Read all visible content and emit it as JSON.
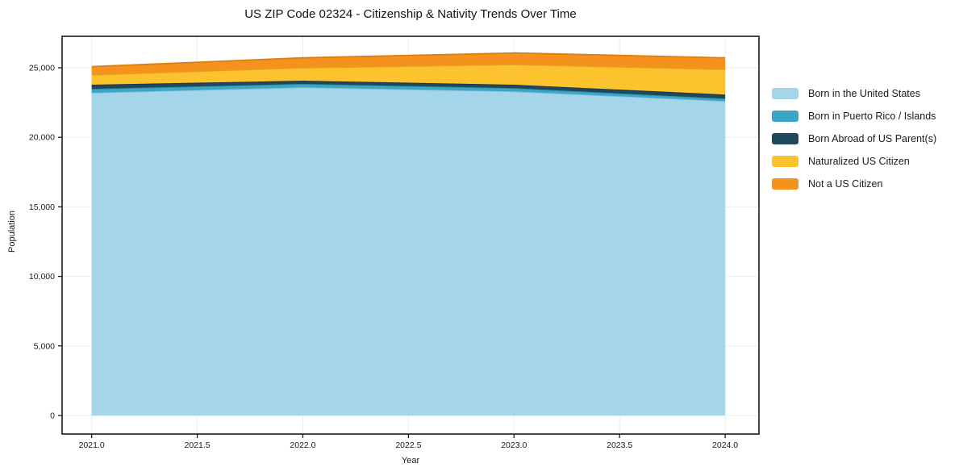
{
  "chart_data": {
    "type": "area",
    "stacked": true,
    "title": "US ZIP Code 02324 - Citizenship & Nativity Trends Over Time",
    "xlabel": "Year",
    "ylabel": "Population",
    "x": [
      2021,
      2022,
      2023,
      2024
    ],
    "series": [
      {
        "name": "Born in the United States",
        "fill": "#A5D5E9",
        "line": "#7FBEDC",
        "values": [
          23200,
          23590,
          23300,
          22600
        ]
      },
      {
        "name": "Born in Puerto Rico / Islands",
        "fill": "#3AA7C6",
        "line": "#2F8FAB",
        "values": [
          280,
          250,
          230,
          180
        ]
      },
      {
        "name": "Born Abroad of US Parent(s)",
        "fill": "#1F485C",
        "line": "#16364A",
        "values": [
          300,
          230,
          250,
          290
        ]
      },
      {
        "name": "Naturalized US Citizen",
        "fill": "#FCC32F",
        "line": "#E2A71E",
        "values": [
          710,
          930,
          1450,
          1810
        ]
      },
      {
        "name": "Not a US Citizen",
        "fill": "#F5921E",
        "line": "#DD7E12",
        "values": [
          590,
          710,
          830,
          830
        ]
      }
    ],
    "xlim": [
      2020.86,
      2024.16
    ],
    "ylim": [
      -1335,
      27260
    ],
    "xticks": {
      "values": [
        2021,
        2021.5,
        2022,
        2022.5,
        2023,
        2023.5,
        2024
      ],
      "labels": [
        "2021.0",
        "2021.5",
        "2022.0",
        "2022.5",
        "2023.0",
        "2023.5",
        "2024.0"
      ]
    },
    "yticks": {
      "values": [
        0,
        5000,
        10000,
        15000,
        20000,
        25000
      ],
      "labels": [
        "0",
        "5,000",
        "10,000",
        "15,000",
        "20,000",
        "25,000"
      ]
    },
    "grid": true,
    "grid_color": "#ebebeb",
    "spine_color": "#1a1a1a",
    "legend_position": "right"
  }
}
